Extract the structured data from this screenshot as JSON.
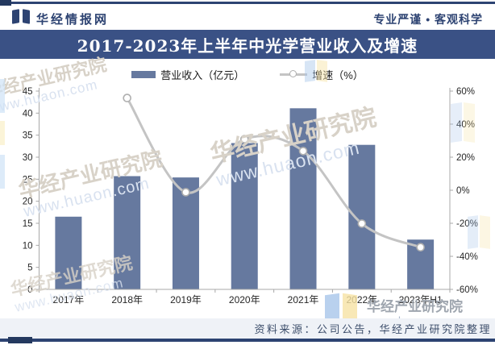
{
  "header": {
    "brand": "华经情报网",
    "slogan": "专业严谨 • 客观科学",
    "logo_icon": "open-book-logo"
  },
  "title_bar": {
    "title": "2017-2023年上半年中光学营业收入及增速"
  },
  "legend": {
    "items": [
      {
        "label": "营业收入（亿元）",
        "swatch": "bar-swatch",
        "color": "#66799F"
      },
      {
        "label": "增速（%）",
        "swatch": "line-marker-swatch",
        "color": "#C4C4C4"
      }
    ]
  },
  "footer": {
    "source_note": "资料来源：公司公告，华经产业研究院整理"
  },
  "watermark": {
    "org": "华经产业研究院",
    "site": "www.huaon.com"
  },
  "colors": {
    "accent_dark_blue": "#2D4372",
    "title_band": "#3A5185",
    "bar": "#66799F",
    "line": "#C4C4C4",
    "marker_fill": "#FFFFFF",
    "marker_stroke": "#AFAFAF",
    "axis": "#A8A8A8",
    "tick_text": "#262626",
    "footer_band": "#EFF2F7"
  },
  "chart_data": {
    "type": "bar+line",
    "title": "2017-2023年上半年中光学营业收入及增速",
    "categories": [
      "2017年",
      "2018年",
      "2019年",
      "2020年",
      "2021年",
      "2022年",
      "2023年H1"
    ],
    "series": [
      {
        "name": "营业收入（亿元）",
        "type": "bar",
        "axis": "left",
        "color": "#66799F",
        "values": [
          16.5,
          25.7,
          25.4,
          33.2,
          41.1,
          32.8,
          11.3
        ]
      },
      {
        "name": "增速（%）",
        "type": "line",
        "axis": "right",
        "color": "#C4C4C4",
        "values": [
          null,
          55.8,
          -1.2,
          30.9,
          23.7,
          -20.2,
          -34.5
        ]
      }
    ],
    "left_axis": {
      "min": 0,
      "max": 45,
      "ticks": [
        45,
        40,
        35,
        30,
        25,
        20,
        15,
        10,
        5,
        0
      ]
    },
    "right_axis": {
      "min": -60,
      "max": 60,
      "ticks": [
        "60%",
        "40%",
        "20%",
        "0%",
        "-20%",
        "-40%",
        "-60%"
      ]
    },
    "grid": false,
    "legend_position": "top"
  }
}
